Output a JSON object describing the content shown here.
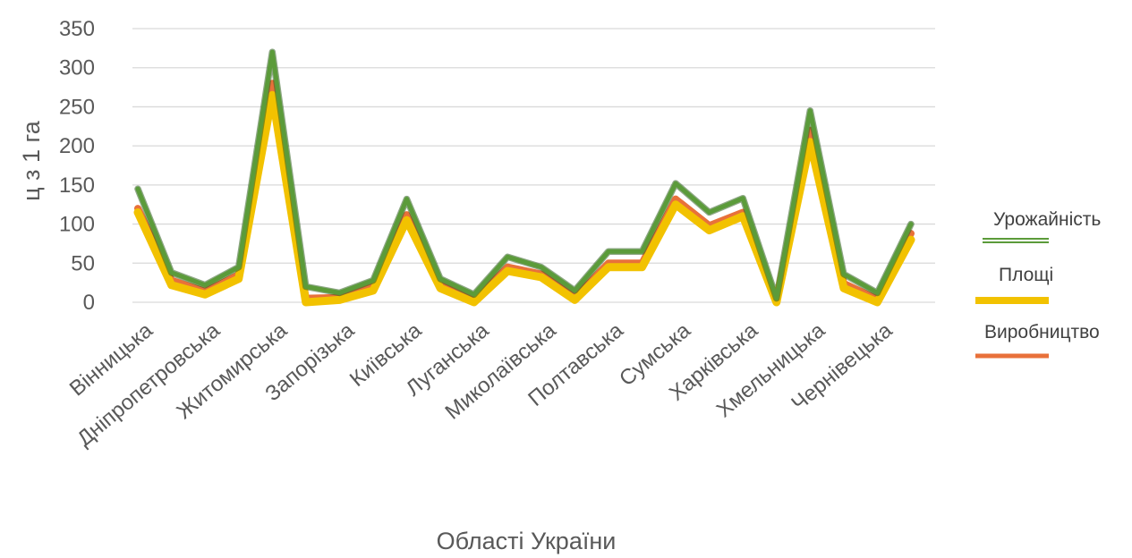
{
  "chart_data": {
    "type": "line",
    "xlabel": "Області України",
    "ylabel": "ц з 1 га",
    "ylim": [
      0,
      350
    ],
    "yticks": [
      0,
      50,
      100,
      150,
      200,
      250,
      300,
      350
    ],
    "grid": true,
    "legend": "right",
    "categories": [
      "Вінницька",
      "",
      "Дніпропетровська",
      "",
      "Житомирська",
      "",
      "Запорізька",
      "",
      "Київська",
      "",
      "Луганська",
      "",
      "Миколаївська",
      "",
      "Полтавська",
      "",
      "Сумська",
      "",
      "Харківська",
      "",
      "Хмельницька",
      "",
      "Чернівецька",
      ""
    ],
    "series": [
      {
        "name": "Урожайність",
        "color": "#5b9b3a",
        "values": [
          145,
          38,
          22,
          45,
          320,
          20,
          12,
          28,
          132,
          30,
          10,
          58,
          45,
          15,
          65,
          65,
          152,
          115,
          133,
          5,
          245,
          36,
          12,
          100
        ]
      },
      {
        "name": "Площі",
        "color": "#f2c200",
        "values": [
          115,
          22,
          10,
          30,
          265,
          0,
          3,
          15,
          105,
          18,
          0,
          40,
          32,
          3,
          45,
          45,
          125,
          92,
          110,
          0,
          205,
          18,
          0,
          80
        ]
      },
      {
        "name": "Виробництво",
        "color": "#e8713a",
        "values": [
          120,
          28,
          14,
          35,
          280,
          5,
          6,
          20,
          112,
          22,
          3,
          45,
          36,
          6,
          50,
          50,
          132,
          98,
          115,
          2,
          220,
          24,
          4,
          88
        ]
      }
    ]
  }
}
